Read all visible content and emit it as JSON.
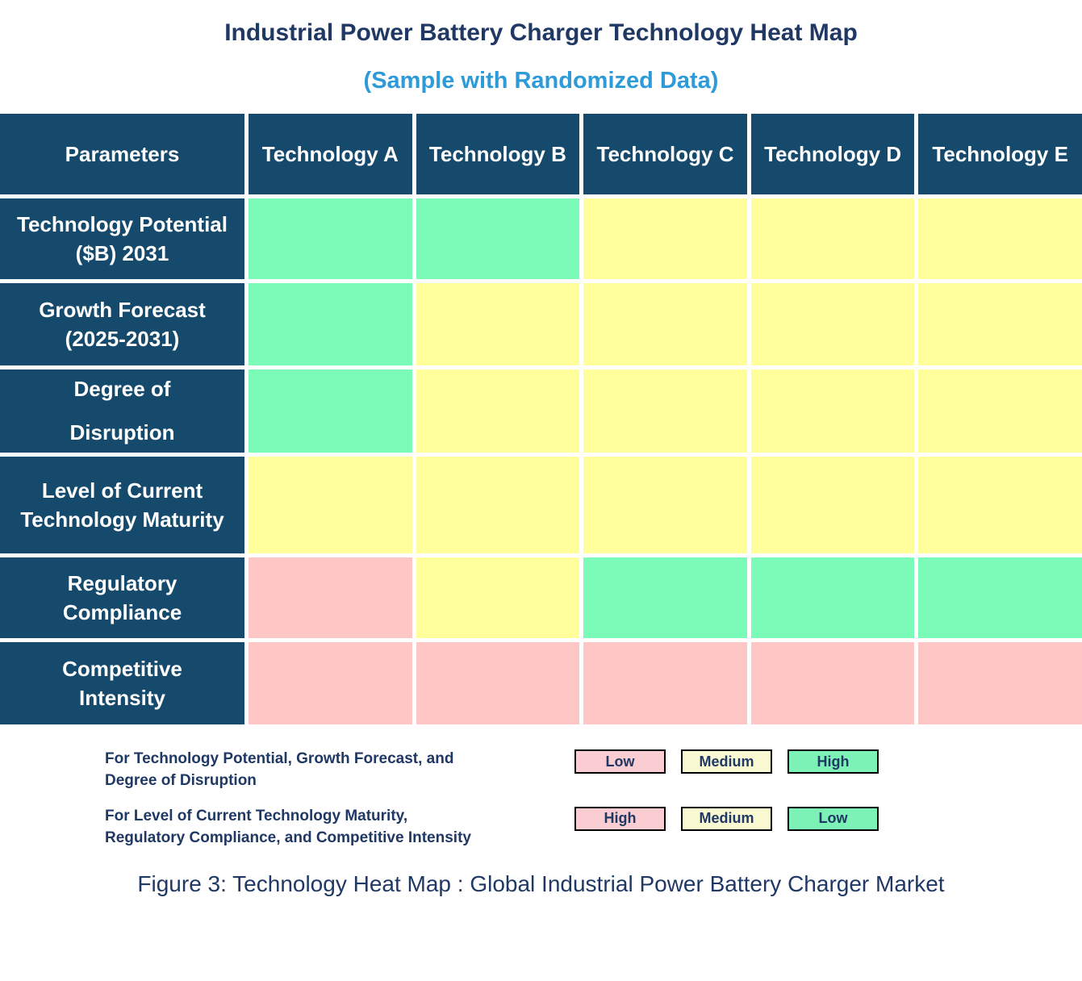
{
  "title": "Industrial Power Battery Charger Technology Heat Map",
  "subtitle": "(Sample with Randomized Data)",
  "caption": "Figure 3: Technology Heat Map : Global Industrial Power Battery Charger Market",
  "colors": {
    "theme": {
      "header_bg": "#164A6D",
      "title_navy": "#1F3864",
      "subtitle_blue": "#2E9AD8",
      "text_navy": "#1F3864"
    },
    "cell": {
      "green": "#7AFBB8",
      "yellow": "#FEFE9B",
      "pink": "#FFC6C6"
    },
    "legend": {
      "green": "#7DF2B6",
      "yellow": "#FAFAD2",
      "pink": "#F9CDD1"
    }
  },
  "chart_data": {
    "type": "heatmap",
    "title": "Industrial Power Battery Charger Technology Heat Map",
    "subtitle": "(Sample with Randomized Data)",
    "corner_label": "Parameters",
    "columns": [
      "Technology A",
      "Technology B",
      "Technology C",
      "Technology D",
      "Technology E"
    ],
    "rows": [
      {
        "parameter": "Technology Potential\n($B) 2031",
        "line_spacing": "normal",
        "cell_colors": [
          "green",
          "green",
          "yellow",
          "yellow",
          "yellow"
        ],
        "ratings": [
          "High",
          "High",
          "Medium",
          "Medium",
          "Medium"
        ]
      },
      {
        "parameter": "Growth Forecast\n(2025-2031)",
        "line_spacing": "normal",
        "cell_colors": [
          "green",
          "yellow",
          "yellow",
          "yellow",
          "yellow"
        ],
        "ratings": [
          "High",
          "Medium",
          "Medium",
          "Medium",
          "Medium"
        ]
      },
      {
        "parameter": "Degree of\nDisruption",
        "line_spacing": "wide",
        "cell_colors": [
          "green",
          "yellow",
          "yellow",
          "yellow",
          "yellow"
        ],
        "ratings": [
          "High",
          "Medium",
          "Medium",
          "Medium",
          "Medium"
        ]
      },
      {
        "parameter": "Level of Current\nTechnology Maturity",
        "line_spacing": "normal",
        "cell_colors": [
          "yellow",
          "yellow",
          "yellow",
          "yellow",
          "yellow"
        ],
        "ratings": [
          "Medium",
          "Medium",
          "Medium",
          "Medium",
          "Medium"
        ]
      },
      {
        "parameter": "Regulatory\nCompliance",
        "line_spacing": "normal",
        "cell_colors": [
          "pink",
          "yellow",
          "green",
          "green",
          "green"
        ],
        "ratings": [
          "High",
          "Medium",
          "Low",
          "Low",
          "Low"
        ]
      },
      {
        "parameter": "Competitive\nIntensity",
        "line_spacing": "normal",
        "cell_colors": [
          "pink",
          "pink",
          "pink",
          "pink",
          "pink"
        ],
        "ratings": [
          "High",
          "High",
          "High",
          "High",
          "High"
        ]
      }
    ],
    "legend": {
      "groups": [
        {
          "text": "For Technology Potential, Growth Forecast, and\nDegree of Disruption",
          "items": [
            {
              "label": "Low",
              "color": "pink"
            },
            {
              "label": "Medium",
              "color": "yellow"
            },
            {
              "label": "High",
              "color": "green"
            }
          ]
        },
        {
          "text": "For Level of Current Technology Maturity,\nRegulatory Compliance, and Competitive Intensity",
          "items": [
            {
              "label": "High",
              "color": "pink"
            },
            {
              "label": "Medium",
              "color": "yellow"
            },
            {
              "label": "Low",
              "color": "green"
            }
          ]
        }
      ]
    },
    "layout": {
      "grid": "white gridlines",
      "legend_position": "below-table",
      "caption_position": "bottom-center"
    }
  }
}
